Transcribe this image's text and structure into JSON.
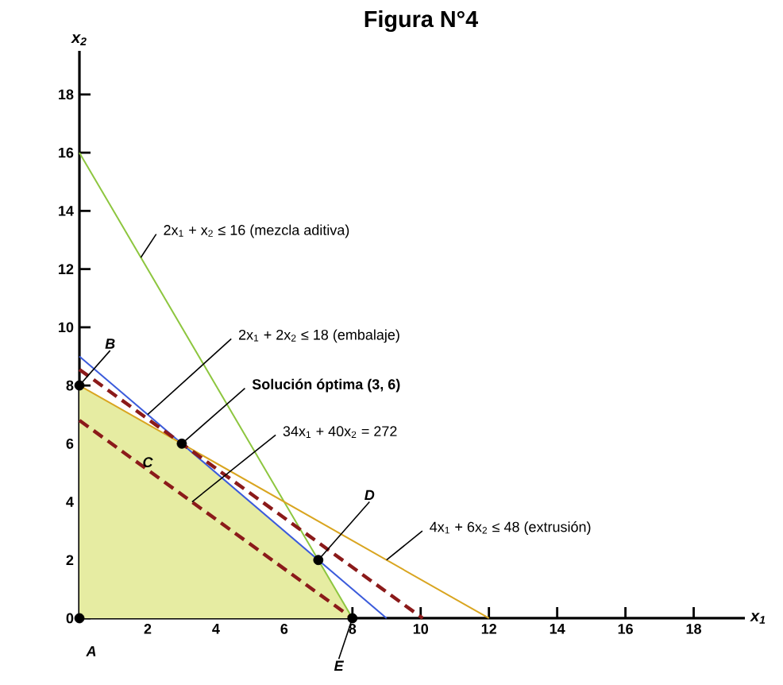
{
  "chart_data": {
    "type": "line",
    "title": "Figura N°4",
    "xlabel": "x$_{1}$",
    "ylabel": "x$_{2}$",
    "xlim": [
      0,
      19.5
    ],
    "ylim": [
      0,
      19.5
    ],
    "xticks": [
      2,
      4,
      6,
      8,
      10,
      12,
      14,
      16,
      18
    ],
    "yticks": [
      0,
      2,
      4,
      6,
      8,
      10,
      12,
      14,
      16,
      18
    ],
    "series": [
      {
        "type": "area",
        "color": "#e6eca2",
        "x": [
          0,
          3,
          7,
          8
        ],
        "values": [
          8,
          6,
          2,
          0
        ]
      },
      {
        "color": "#8dc63f",
        "x": [
          0,
          8
        ],
        "values": [
          16,
          0
        ]
      },
      {
        "color": "#3b5bdb",
        "x": [
          0,
          9
        ],
        "values": [
          9,
          0
        ]
      },
      {
        "color": "#d9a520",
        "x": [
          0,
          12
        ],
        "values": [
          8,
          0
        ]
      },
      {
        "color": "#8b1a1a",
        "line_style": "dashed",
        "x": [
          0,
          8
        ],
        "values": [
          6.8,
          0
        ]
      },
      {
        "color": "#8b1a1a",
        "line_style": "dashed",
        "x": [
          0,
          10.06
        ],
        "values": [
          8.55,
          0
        ]
      },
      {
        "type": "scatter",
        "color": "#000000",
        "marker": "circle",
        "x": [
          0,
          0,
          3,
          7,
          8
        ],
        "values": [
          0,
          8,
          6,
          2,
          0
        ]
      }
    ],
    "annotations": [
      {
        "text": "2x$_{1}$ + x$_{2}$ ≤ 16 (mezcla aditiva)",
        "x": 1.8,
        "y": 12.4
      },
      {
        "text": "2x$_{1}$ + 2x$_{2}$ ≤ 18 (embalaje)",
        "x": 2,
        "y": 7
      },
      {
        "text": "Solución óptima (3, 6)",
        "x": 3,
        "y": 6
      },
      {
        "text": "34x$_{1}$ + 40x$_{2}$ = 272",
        "x": 3.3,
        "y": 4.0
      },
      {
        "text": "4x$_{1}$ + 6x$_{2}$ ≤ 48 (extrusión)",
        "x": 9,
        "y": 2
      },
      {
        "text": "A",
        "x": 0,
        "y": 0
      },
      {
        "text": "B",
        "x": 0,
        "y": 8
      },
      {
        "text": "C",
        "x": 3,
        "y": 6
      },
      {
        "text": "D",
        "x": 7,
        "y": 2
      },
      {
        "text": "E",
        "x": 8,
        "y": 0
      }
    ]
  }
}
